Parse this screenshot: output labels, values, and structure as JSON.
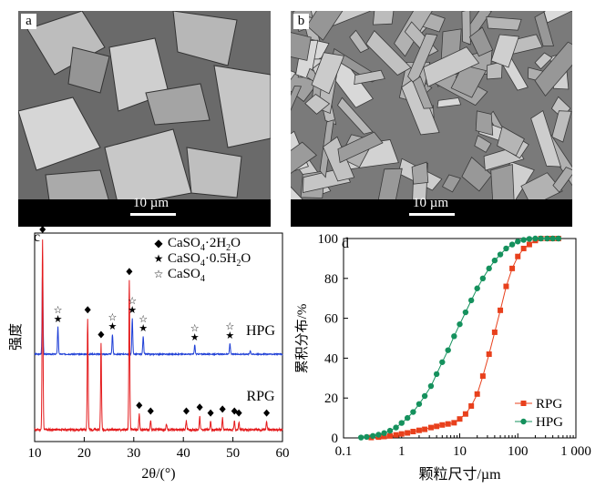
{
  "panel_a": {
    "letter": "a",
    "scale_label": "10 µm"
  },
  "panel_b": {
    "letter": "b",
    "scale_label": "10 µm"
  },
  "chart_data": [
    {
      "type": "line",
      "panel": "c",
      "xlabel": "2θ/(°)",
      "ylabel": "强度",
      "xlim": [
        10,
        60
      ],
      "xticks": [
        10,
        20,
        30,
        40,
        50,
        60
      ],
      "series": [
        {
          "name": "HPG",
          "color": "#1f3fd6",
          "peaks": [
            [
              11.6,
              0.95
            ],
            [
              14.7,
              0.3
            ],
            [
              25.7,
              0.22
            ],
            [
              29.7,
              0.4
            ],
            [
              31.9,
              0.2
            ],
            [
              42.3,
              0.1
            ],
            [
              49.4,
              0.12
            ],
            [
              53.5,
              0.04
            ]
          ]
        },
        {
          "name": "RPG",
          "color": "#e41a1c",
          "peaks": [
            [
              11.6,
              1.0
            ],
            [
              20.7,
              0.58
            ],
            [
              23.4,
              0.45
            ],
            [
              29.1,
              0.78
            ],
            [
              31.1,
              0.08
            ],
            [
              33.4,
              0.05
            ],
            [
              36.6,
              0.03
            ],
            [
              40.6,
              0.05
            ],
            [
              43.3,
              0.07
            ],
            [
              45.5,
              0.04
            ],
            [
              47.9,
              0.06
            ],
            [
              50.3,
              0.05
            ],
            [
              51.2,
              0.04
            ],
            [
              56.8,
              0.04
            ]
          ]
        }
      ],
      "legend": [
        {
          "marker": "◆",
          "label_base": "CaSO",
          "sub1": "4",
          "mid": "·2H",
          "sub2": "2",
          "end": "O"
        },
        {
          "marker": "★",
          "label_base": "CaSO",
          "sub1": "4",
          "mid": "·0.5H",
          "sub2": "2",
          "end": "O"
        },
        {
          "marker": "☆",
          "label_base": "CaSO",
          "sub1": "4",
          "mid": "",
          "sub2": "",
          "end": ""
        }
      ],
      "markers": {
        "diamond": [
          11.6,
          20.7,
          23.4,
          29.1,
          31.1,
          33.4,
          40.6,
          43.3,
          45.5,
          47.9,
          50.3,
          51.2,
          56.8
        ],
        "star_filled": [
          14.7,
          25.7,
          29.7,
          31.9,
          42.3,
          49.4
        ],
        "star_open": [
          14.7,
          25.7,
          29.7,
          31.9,
          42.3,
          49.4
        ]
      }
    },
    {
      "type": "line",
      "panel": "d",
      "xlabel": "颗粒尺寸/µm",
      "ylabel": "累积分布/%",
      "xscale": "log",
      "xlim": [
        0.1,
        1000
      ],
      "xticks": [
        0.1,
        1,
        10,
        100,
        1000
      ],
      "xtick_labels": [
        "0.1",
        "1",
        "10",
        "100",
        "1 000"
      ],
      "ylim": [
        0,
        100
      ],
      "yticks": [
        0,
        20,
        40,
        60,
        80,
        100
      ],
      "series": [
        {
          "name": "RPG",
          "color": "#e8401c",
          "marker": "square",
          "x": [
            0.3,
            0.4,
            0.5,
            0.63,
            0.8,
            1.0,
            1.26,
            1.58,
            2.0,
            2.5,
            3.2,
            4.0,
            5.0,
            6.3,
            8.0,
            10,
            12.6,
            15.8,
            20,
            25,
            32,
            40,
            50,
            63,
            80,
            100,
            126,
            158,
            200,
            250,
            320,
            400,
            500
          ],
          "y": [
            0.2,
            0.4,
            0.7,
            1.0,
            1.5,
            2.0,
            2.5,
            3.2,
            3.8,
            4.3,
            5.2,
            5.8,
            6.5,
            7.0,
            7.6,
            9.5,
            12,
            16,
            22,
            31,
            42,
            53,
            64,
            76,
            85,
            91,
            95,
            97,
            99,
            100,
            100,
            100,
            100
          ]
        },
        {
          "name": "HPG",
          "color": "#15915d",
          "marker": "circle",
          "x": [
            0.2,
            0.25,
            0.32,
            0.4,
            0.5,
            0.63,
            0.8,
            1.0,
            1.26,
            1.58,
            2.0,
            2.5,
            3.2,
            4.0,
            5.0,
            6.3,
            8.0,
            10,
            12.6,
            15.8,
            20,
            25,
            32,
            40,
            50,
            63,
            80,
            100,
            126,
            158,
            200,
            250,
            320,
            400,
            500
          ],
          "y": [
            0.2,
            0.5,
            1.0,
            1.6,
            2.4,
            3.6,
            5.2,
            7.5,
            10,
            13,
            17,
            21,
            26,
            32,
            38,
            44,
            51,
            57,
            63,
            69,
            75,
            80,
            85,
            89,
            92,
            95,
            97,
            98.5,
            99.3,
            99.8,
            100,
            100,
            100,
            100,
            100
          ]
        }
      ]
    }
  ]
}
